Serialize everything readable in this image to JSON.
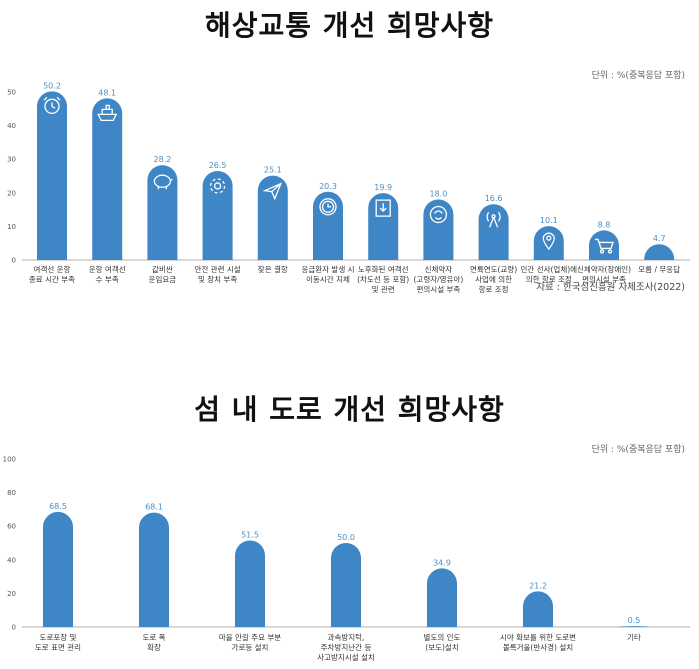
{
  "charts": [
    {
      "title": "해상교통 개선 희망사항",
      "unit": "단위 : %(중복응답 포함)",
      "source": "자료 : 한국섬진흥원 자체조사(2022)",
      "bar_color": "#3f86c6",
      "label_color": "#4a90c8"
    },
    {
      "title": "섬 내 도로 개선 희망사항",
      "unit": "단위 : %(중복응답 포함)",
      "bar_color": "#3f86c6",
      "label_color": "#4a90c8"
    }
  ],
  "chart_data": [
    {
      "type": "bar",
      "title": "해상교통 개선 희망사항",
      "ylim": [
        0,
        50
      ],
      "yticks": [
        0,
        10,
        20,
        30,
        40,
        50
      ],
      "categories": [
        [
          "여객선 운항",
          "종료 시간 부족"
        ],
        [
          "운항 여객선",
          "수 부족"
        ],
        [
          "값비싼",
          "운임요금"
        ],
        [
          "안전 관련 시설",
          "및 장치 부족"
        ],
        [
          "잦은 결항"
        ],
        [
          "응급환자 발생 시",
          "이동시간 지체"
        ],
        [
          "노후화된 여객선",
          "(차도선 등 포함)",
          "및 관련"
        ],
        [
          "신체약자",
          "(고령자/영유아)",
          "편의시설 부족"
        ],
        [
          "연륙연도(교량)",
          "사업에 의한",
          "항로 조정"
        ],
        [
          "민간 선사(업체)에",
          "의한 항로 조정"
        ],
        [
          "신체약자(장애인)",
          "편의시설 부족"
        ],
        [
          "모름 / 무응답"
        ]
      ],
      "values": [
        50.2,
        48.1,
        28.2,
        26.5,
        25.1,
        20.3,
        19.9,
        18.0,
        16.6,
        10.1,
        8.8,
        4.7
      ],
      "icons": [
        "alarm-clock-icon",
        "ship-icon",
        "piggy-bank-icon",
        "gear-icon",
        "paper-plane-icon",
        "clock-icon",
        "download-icon",
        "person-icon",
        "signal-tower-icon",
        "map-pin-icon",
        "shopping-cart-icon",
        ""
      ]
    },
    {
      "type": "bar",
      "title": "섬 내 도로 개선 희망사항",
      "ylim": [
        0,
        100
      ],
      "yticks": [
        0,
        20,
        40,
        60,
        80,
        100
      ],
      "categories": [
        [
          "도로포장 및",
          "도로 표면 관리"
        ],
        [
          "도로 폭",
          "확장"
        ],
        [
          "마을 안길 주요 부분",
          "가로등 설치"
        ],
        [
          "과속방지턱,",
          "주차방지난간 등",
          "사고방지시설 설치"
        ],
        [
          "별도의 인도",
          "(보도)설치"
        ],
        [
          "시야 확보를 위한 도로변",
          "볼록거울(반사경) 설치"
        ],
        [
          "기타"
        ]
      ],
      "values": [
        68.5,
        68.1,
        51.5,
        50.0,
        34.9,
        21.2,
        0.5
      ]
    }
  ]
}
